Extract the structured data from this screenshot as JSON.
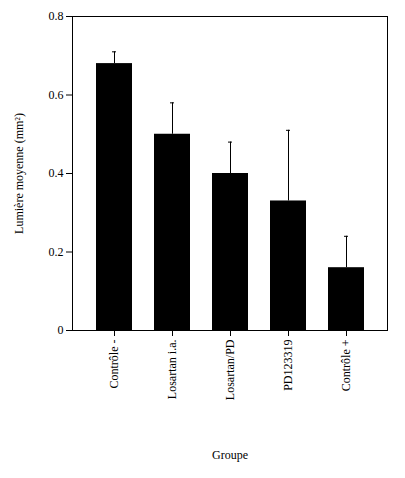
{
  "chart_data": {
    "type": "bar",
    "categories": [
      "Contrôle -",
      "Losartan i.a.",
      "Losartan/PD",
      "PD123319",
      "Contrôle +"
    ],
    "values": [
      0.68,
      0.5,
      0.4,
      0.33,
      0.16
    ],
    "errors": [
      0.03,
      0.08,
      0.08,
      0.18,
      0.08
    ],
    "color": "#000000",
    "x_label": "Groupe",
    "y_label": "Lumière moyenne (mm²)",
    "ylim": [
      0,
      0.8
    ],
    "yticks": [
      0,
      0.2,
      0.4,
      0.6,
      0.8
    ],
    "grid": false
  }
}
